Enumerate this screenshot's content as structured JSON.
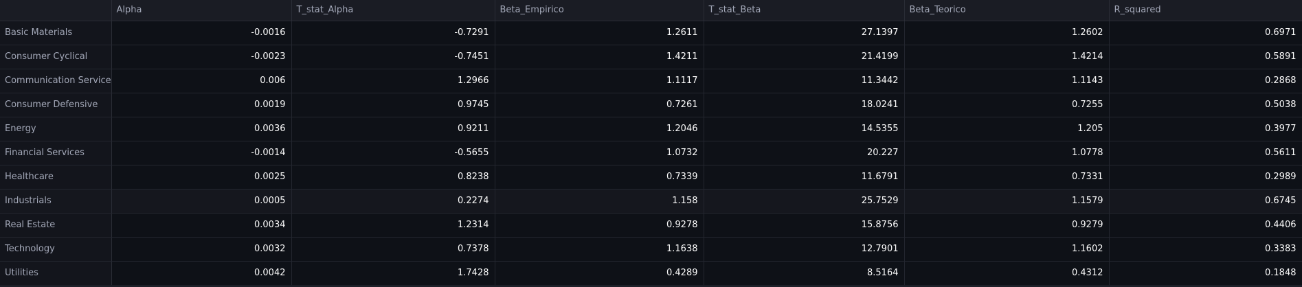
{
  "table": {
    "corner": "",
    "columns": [
      "Alpha",
      "T_stat_Alpha",
      "Beta_Empirico",
      "T_stat_Beta",
      "Beta_Teorico",
      "R_squared"
    ],
    "rows": [
      {
        "label": "Basic Materials",
        "values": [
          "-0.0016",
          "-0.7291",
          "1.2611",
          "27.1397",
          "1.2602",
          "0.6971"
        ]
      },
      {
        "label": "Consumer Cyclical",
        "values": [
          "-0.0023",
          "-0.7451",
          "1.4211",
          "21.4199",
          "1.4214",
          "0.5891"
        ]
      },
      {
        "label": "Communication Services",
        "values": [
          "0.006",
          "1.2966",
          "1.1117",
          "11.3442",
          "1.1143",
          "0.2868"
        ]
      },
      {
        "label": "Consumer Defensive",
        "values": [
          "0.0019",
          "0.9745",
          "0.7261",
          "18.0241",
          "0.7255",
          "0.5038"
        ]
      },
      {
        "label": "Energy",
        "values": [
          "0.0036",
          "0.9211",
          "1.2046",
          "14.5355",
          "1.205",
          "0.3977"
        ]
      },
      {
        "label": "Financial Services",
        "values": [
          "-0.0014",
          "-0.5655",
          "1.0732",
          "20.227",
          "1.0778",
          "0.5611"
        ]
      },
      {
        "label": "Healthcare",
        "values": [
          "0.0025",
          "0.8238",
          "0.7339",
          "11.6791",
          "0.7331",
          "0.2989"
        ]
      },
      {
        "label": "Industrials",
        "values": [
          "0.0005",
          "0.2274",
          "1.158",
          "25.7529",
          "1.1579",
          "0.6745"
        ]
      },
      {
        "label": "Real Estate",
        "values": [
          "0.0034",
          "1.2314",
          "0.9278",
          "15.8756",
          "0.9279",
          "0.4406"
        ]
      },
      {
        "label": "Technology",
        "values": [
          "0.0032",
          "0.7378",
          "1.1638",
          "12.7901",
          "1.1602",
          "0.3383"
        ]
      },
      {
        "label": "Utilities",
        "values": [
          "0.0042",
          "1.7428",
          "0.4289",
          "8.5164",
          "0.4312",
          "0.1848"
        ]
      }
    ]
  }
}
